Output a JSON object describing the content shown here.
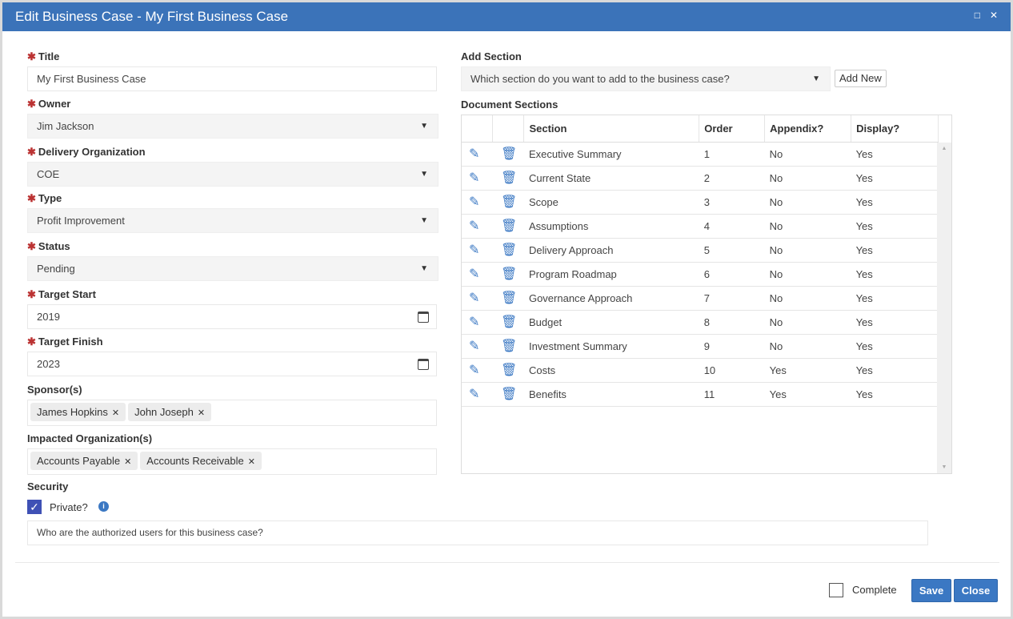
{
  "window": {
    "title": "Edit Business Case - My First Business Case"
  },
  "form": {
    "title": {
      "label": "Title",
      "value": "My First Business Case"
    },
    "owner": {
      "label": "Owner",
      "value": "Jim Jackson"
    },
    "delivery_org": {
      "label": "Delivery Organization",
      "value": "COE"
    },
    "type": {
      "label": "Type",
      "value": "Profit Improvement"
    },
    "status": {
      "label": "Status",
      "value": "Pending"
    },
    "target_start": {
      "label": "Target Start",
      "value": "2019"
    },
    "target_finish": {
      "label": "Target Finish",
      "value": "2023"
    },
    "sponsors": {
      "label": "Sponsor(s)",
      "tags": [
        "James Hopkins",
        "John Joseph"
      ]
    },
    "impacted": {
      "label": "Impacted Organization(s)",
      "tags": [
        "Accounts Payable",
        "Accounts Receivable"
      ]
    },
    "security": {
      "label": "Security",
      "private_label": "Private?",
      "private_checked": true,
      "users_placeholder": "Who are the authorized users for this business case?"
    }
  },
  "add_section": {
    "label": "Add Section",
    "placeholder": "Which section do you want to add to the business case?",
    "add_new": "Add New"
  },
  "sections": {
    "label": "Document Sections",
    "headers": [
      "Section",
      "Order",
      "Appendix?",
      "Display?"
    ],
    "rows": [
      [
        "Executive Summary",
        "1",
        "No",
        "Yes"
      ],
      [
        "Current State",
        "2",
        "No",
        "Yes"
      ],
      [
        "Scope",
        "3",
        "No",
        "Yes"
      ],
      [
        "Assumptions",
        "4",
        "No",
        "Yes"
      ],
      [
        "Delivery Approach",
        "5",
        "No",
        "Yes"
      ],
      [
        "Program Roadmap",
        "6",
        "No",
        "Yes"
      ],
      [
        "Governance Approach",
        "7",
        "No",
        "Yes"
      ],
      [
        "Budget",
        "8",
        "No",
        "Yes"
      ],
      [
        "Investment Summary",
        "9",
        "No",
        "Yes"
      ],
      [
        "Costs",
        "10",
        "Yes",
        "Yes"
      ],
      [
        "Benefits",
        "11",
        "Yes",
        "Yes"
      ]
    ]
  },
  "footer": {
    "complete_label": "Complete",
    "complete_checked": false,
    "save": "Save",
    "close": "Close"
  },
  "colors": {
    "header": "#3b73b9",
    "button": "#3b78c3",
    "required": "#b33333",
    "checkbox": "#3f51b5"
  }
}
